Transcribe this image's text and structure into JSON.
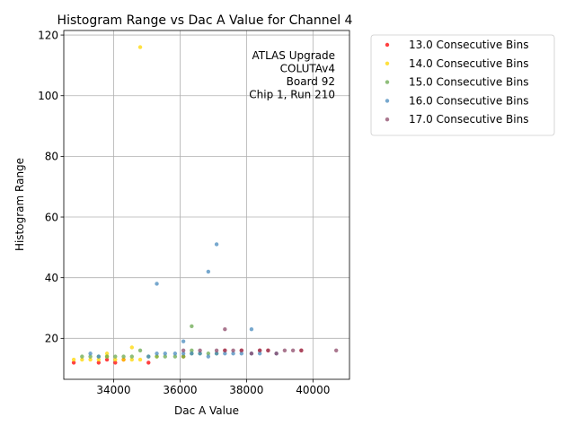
{
  "chart_data": {
    "type": "scatter",
    "title": "Histogram Range vs Dac A Value for Channel 4",
    "xlabel": "Dac A Value",
    "ylabel": "Histogram Range",
    "xlim": [
      32500,
      41100
    ],
    "ylim": [
      6.5,
      121.5
    ],
    "xticks": [
      34000,
      36000,
      38000,
      40000
    ],
    "xtick_labels": [
      "34000",
      "36000",
      "38000",
      "40000"
    ],
    "yticks": [
      20,
      40,
      60,
      80,
      100,
      120
    ],
    "ytick_labels": [
      "20",
      "40",
      "60",
      "80",
      "100",
      "120"
    ],
    "grid": true,
    "legend_position": "outside-top-right",
    "annotation": [
      "ATLAS Upgrade",
      "COLUTAv4",
      "Board 92",
      "Chip 1, Run 210"
    ],
    "series": [
      {
        "name": "13.0 Consecutive Bins",
        "color": "#ff0000",
        "points": [
          [
            32800,
            12
          ],
          [
            33550,
            12
          ],
          [
            34050,
            12
          ],
          [
            35050,
            12
          ],
          [
            33800,
            13
          ],
          [
            34300,
            13
          ],
          [
            36100,
            14
          ],
          [
            37350,
            16
          ],
          [
            37850,
            16
          ],
          [
            38400,
            16
          ],
          [
            38650,
            16
          ],
          [
            39650,
            16
          ]
        ]
      },
      {
        "name": "14.0 Consecutive Bins",
        "color": "#ffd700",
        "points": [
          [
            34800,
            116
          ],
          [
            32800,
            13
          ],
          [
            33050,
            13
          ],
          [
            33300,
            13
          ],
          [
            33550,
            13
          ],
          [
            33800,
            14
          ],
          [
            34050,
            13
          ],
          [
            34300,
            13
          ],
          [
            34550,
            13
          ],
          [
            34800,
            13
          ],
          [
            33800,
            15
          ],
          [
            34550,
            17
          ],
          [
            35300,
            14
          ],
          [
            36100,
            14
          ]
        ]
      },
      {
        "name": "15.0 Consecutive Bins",
        "color": "#6aa84f",
        "points": [
          [
            36350,
            24
          ],
          [
            34800,
            16
          ],
          [
            33050,
            14
          ],
          [
            33300,
            14
          ],
          [
            33550,
            14
          ],
          [
            33800,
            14
          ],
          [
            34050,
            14
          ],
          [
            34300,
            14
          ],
          [
            34550,
            14
          ],
          [
            35050,
            14
          ],
          [
            35300,
            14
          ],
          [
            35550,
            14
          ],
          [
            35850,
            14
          ],
          [
            36100,
            14
          ],
          [
            36350,
            15
          ],
          [
            36600,
            15
          ],
          [
            36850,
            15
          ],
          [
            37100,
            15
          ],
          [
            36350,
            16
          ]
        ]
      },
      {
        "name": "16.0 Consecutive Bins",
        "color": "#4a8bbd",
        "points": [
          [
            37100,
            51
          ],
          [
            36850,
            42
          ],
          [
            35300,
            38
          ],
          [
            38150,
            23
          ],
          [
            36100,
            19
          ],
          [
            33300,
            15
          ],
          [
            35300,
            15
          ],
          [
            35550,
            15
          ],
          [
            35850,
            15
          ],
          [
            36100,
            15
          ],
          [
            36350,
            15
          ],
          [
            36600,
            15
          ],
          [
            36850,
            14
          ],
          [
            37100,
            15
          ],
          [
            37350,
            15
          ],
          [
            37600,
            15
          ],
          [
            37850,
            15
          ],
          [
            38150,
            15
          ],
          [
            38400,
            15
          ],
          [
            38900,
            15
          ],
          [
            33550,
            14
          ],
          [
            35050,
            14
          ]
        ]
      },
      {
        "name": "17.0 Consecutive Bins",
        "color": "#8e4a6a",
        "points": [
          [
            37350,
            23
          ],
          [
            36100,
            16
          ],
          [
            36600,
            16
          ],
          [
            37100,
            16
          ],
          [
            37350,
            16
          ],
          [
            37600,
            16
          ],
          [
            37850,
            16
          ],
          [
            38150,
            15
          ],
          [
            38400,
            16
          ],
          [
            38650,
            16
          ],
          [
            38900,
            15
          ],
          [
            39150,
            16
          ],
          [
            39400,
            16
          ],
          [
            39650,
            16
          ],
          [
            40700,
            16
          ]
        ]
      }
    ]
  }
}
